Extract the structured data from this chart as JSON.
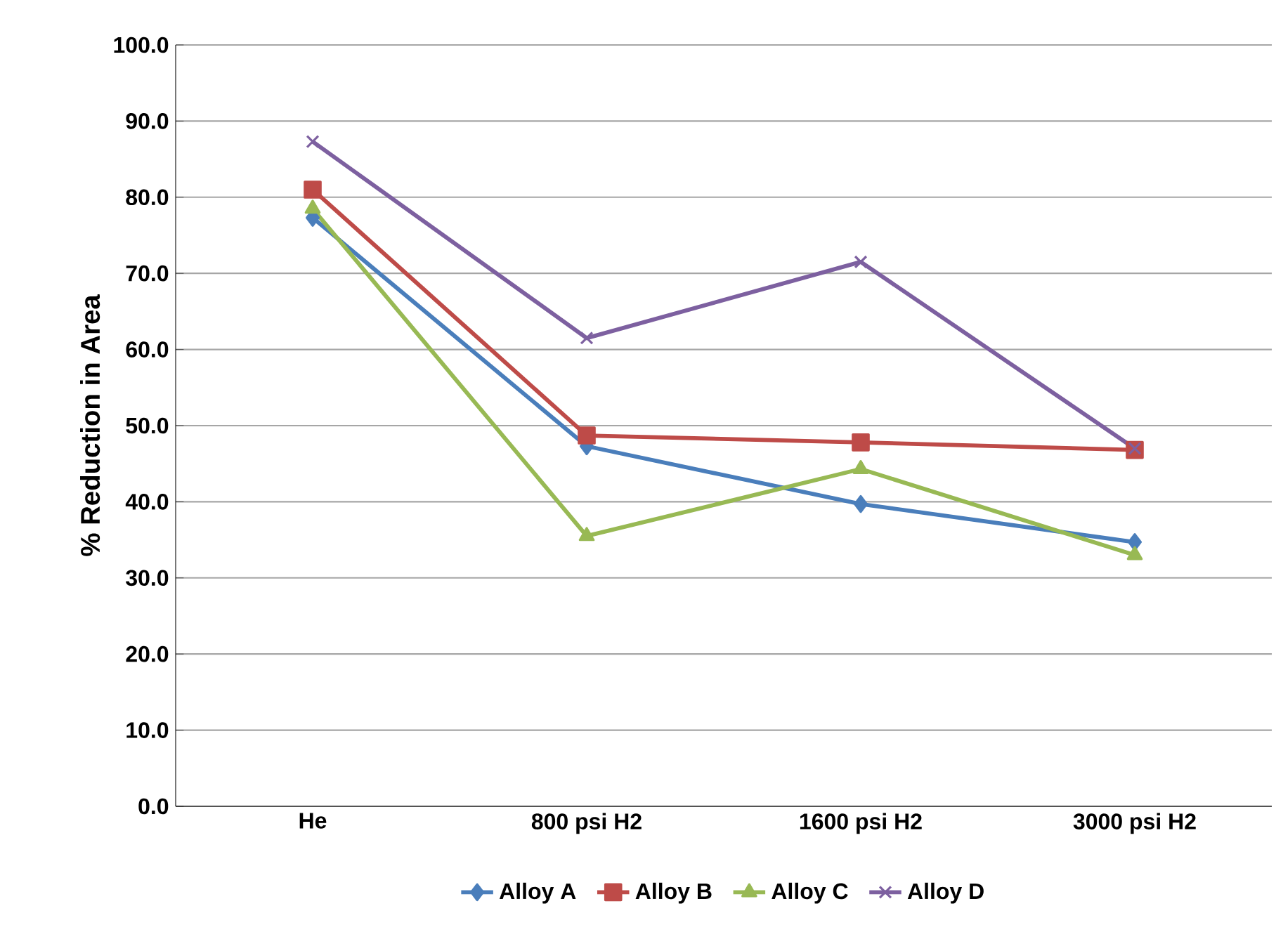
{
  "chart_data": {
    "type": "line",
    "ylabel": "% Reduction in Area",
    "categories": [
      "He",
      "800 psi H2",
      "1600 psi H2",
      "3000 psi H2"
    ],
    "series": [
      {
        "name": "Alloy A",
        "color": "#4a7ebb",
        "marker": "diamond",
        "values": [
          77.3,
          47.3,
          39.7,
          34.7
        ]
      },
      {
        "name": "Alloy B",
        "color": "#be4b48",
        "marker": "square",
        "values": [
          81.0,
          48.7,
          47.8,
          46.8
        ]
      },
      {
        "name": "Alloy C",
        "color": "#98b954",
        "marker": "triangle",
        "values": [
          78.5,
          35.5,
          44.3,
          33.0
        ]
      },
      {
        "name": "Alloy D",
        "color": "#7d60a0",
        "marker": "cross",
        "values": [
          87.3,
          61.5,
          71.5,
          47.0
        ]
      }
    ],
    "ylim": [
      0,
      100
    ],
    "yticks": [
      {
        "value": 0,
        "label": "0.0"
      },
      {
        "value": 10,
        "label": "10.0"
      },
      {
        "value": 20,
        "label": "20.0"
      },
      {
        "value": 30,
        "label": "30.0"
      },
      {
        "value": 40,
        "label": "40.0"
      },
      {
        "value": 50,
        "label": "50.0"
      },
      {
        "value": 60,
        "label": "60.0"
      },
      {
        "value": 70,
        "label": "70.0"
      },
      {
        "value": 80,
        "label": "80.0"
      },
      {
        "value": 90,
        "label": "90.0"
      },
      {
        "value": 100,
        "label": "100.0"
      }
    ],
    "grid": "y",
    "legend": "bottom",
    "line_style": "solid"
  }
}
